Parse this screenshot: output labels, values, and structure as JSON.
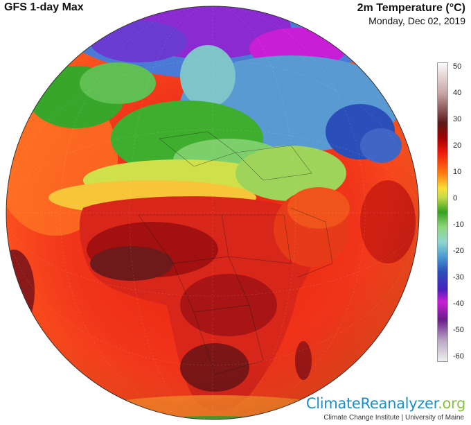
{
  "header": {
    "product": "GFS 1-day Max",
    "variable": "2m Temperature (°C)",
    "date": "Monday, Dec 02, 2019"
  },
  "legend": {
    "ticks": [
      "50",
      "40",
      "30",
      "20",
      "10",
      "0",
      "-10",
      "-20",
      "-30",
      "-40",
      "-50",
      "-60"
    ],
    "range": [
      -60,
      50
    ],
    "colors": {
      "max": "#fbfbfb",
      "hot": "#a00000",
      "warm": "#ff7a10",
      "mild": "#f9de36",
      "cool": "#35a01e",
      "zero": "#8fd6d0",
      "cold": "#4a9ad0",
      "freezing": "#2a4fb8",
      "extreme": "#c91fd6",
      "min": "#efefef"
    }
  },
  "footer": {
    "brand_main": "ClimateReanalyzer",
    "brand_suffix": ".org",
    "affiliation": "Climate Change Institute | University of Maine"
  }
}
